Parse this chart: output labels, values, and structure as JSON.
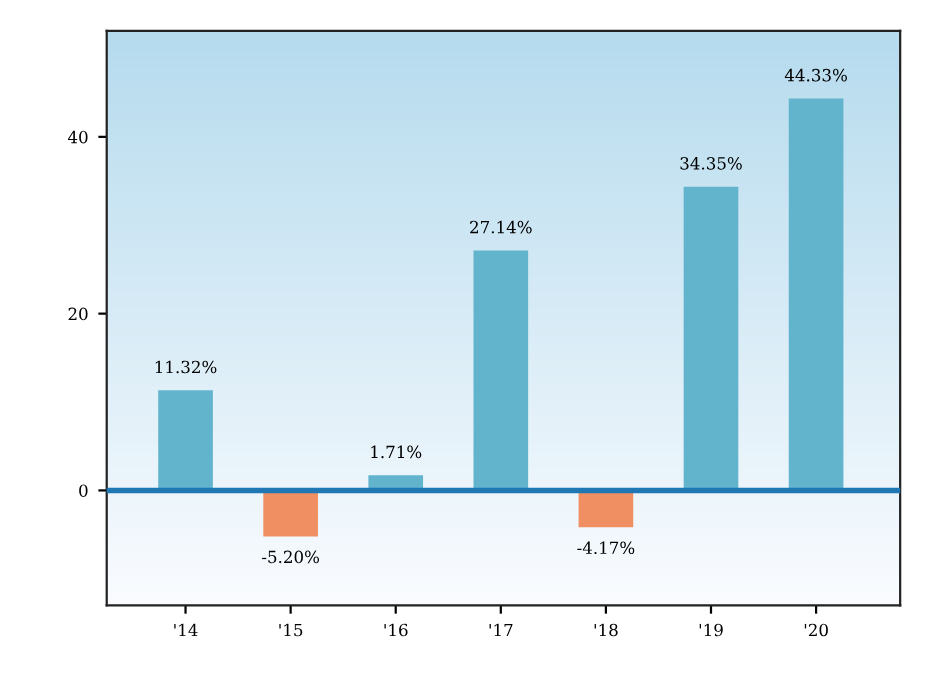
{
  "chart_data": {
    "type": "bar",
    "categories": [
      "'14",
      "'15",
      "'16",
      "'17",
      "'18",
      "'19",
      "'20"
    ],
    "values": [
      11.32,
      -5.2,
      1.71,
      27.14,
      -4.17,
      34.35,
      44.33
    ],
    "colors": [
      "#62b4cc",
      "#ef8f62",
      "#62b4cc",
      "#62b4cc",
      "#ef8f62",
      "#62b4cc",
      "#62b4cc"
    ],
    "value_labels": [
      "11.32%",
      "-5.20%",
      "1.71%",
      "27.14%",
      "-4.17%",
      "34.35%",
      "44.33%"
    ],
    "ylim": [
      -13,
      52
    ],
    "yticks": [
      0,
      20,
      40
    ],
    "ref_lines": [
      {
        "axis": "y",
        "value": 0,
        "color": "#1f77b4",
        "line_style": "solid"
      }
    ],
    "grid": false,
    "legend": false
  }
}
